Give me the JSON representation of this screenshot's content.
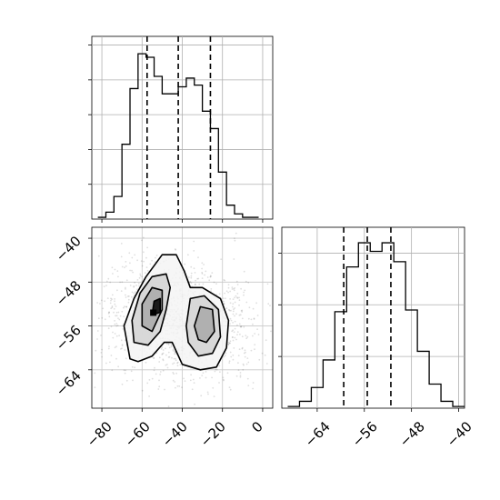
{
  "chart_data": [
    {
      "type": "histogram",
      "panel": "top-left marginal",
      "bin_edges": [
        -82,
        -78,
        -74,
        -70,
        -66,
        -62,
        -58,
        -54,
        -50,
        -46,
        -42,
        -38,
        -34,
        -30,
        -26,
        -22,
        -18,
        -14,
        -10,
        -6,
        -2
      ],
      "counts": [
        0.01,
        0.04,
        0.13,
        0.43,
        0.75,
        0.95,
        0.93,
        0.82,
        0.72,
        0.72,
        0.76,
        0.81,
        0.77,
        0.62,
        0.52,
        0.27,
        0.08,
        0.03,
        0.01,
        0.01
      ],
      "quantile_lines": [
        -57.5,
        -42.0,
        -26.0
      ],
      "xlim": [
        -85,
        5
      ],
      "ylim": [
        0,
        1.05
      ],
      "grid": true
    },
    {
      "type": "2d-density",
      "panel": "bottom-left joint",
      "xlim": [
        -85,
        5
      ],
      "ylim": [
        -71,
        -38
      ],
      "x_ticks": [
        -80,
        -60,
        -40,
        -20,
        0
      ],
      "y_ticks": [
        -40,
        -48,
        -56,
        -64
      ],
      "modes": [
        {
          "x": -54,
          "y": -54,
          "weight": 1.0
        },
        {
          "x": -29,
          "y": -56,
          "weight": 0.78
        }
      ],
      "contours": [
        {
          "level": "outer",
          "points": [
            [
              -66,
              -62
            ],
            [
              -69,
              -56
            ],
            [
              -64,
              -51
            ],
            [
              -58,
              -47
            ],
            [
              -50,
              -43
            ],
            [
              -43,
              -43
            ],
            [
              -39,
              -46
            ],
            [
              -36,
              -49
            ],
            [
              -30,
              -49
            ],
            [
              -21,
              -51
            ],
            [
              -17,
              -55
            ],
            [
              -18,
              -60
            ],
            [
              -23,
              -63.5
            ],
            [
              -31,
              -64
            ],
            [
              -40,
              -63
            ],
            [
              -45,
              -59
            ],
            [
              -49,
              -59
            ],
            [
              -55,
              -61.5
            ],
            [
              -62,
              -62.5
            ]
          ]
        },
        {
          "level": "second",
          "points": [
            [
              -64,
              -59
            ],
            [
              -65,
              -55
            ],
            [
              -61,
              -50
            ],
            [
              -55,
              -47
            ],
            [
              -48,
              -46.5
            ],
            [
              -46,
              -49
            ],
            [
              -48,
              -53
            ],
            [
              -51,
              -57
            ],
            [
              -57,
              -59.5
            ]
          ]
        },
        {
          "level": "second-b",
          "points": [
            [
              -38,
              -56
            ],
            [
              -36,
              -51
            ],
            [
              -29,
              -50.5
            ],
            [
              -22,
              -53
            ],
            [
              -21,
              -58
            ],
            [
              -25,
              -61
            ],
            [
              -32,
              -61.5
            ],
            [
              -37,
              -59
            ]
          ]
        },
        {
          "level": "third",
          "points": [
            [
              -60,
              -56
            ],
            [
              -60,
              -52
            ],
            [
              -55,
              -49
            ],
            [
              -50,
              -49.5
            ],
            [
              -50,
              -53
            ],
            [
              -55,
              -57
            ]
          ]
        },
        {
          "level": "third-b",
          "points": [
            [
              -34,
              -56
            ],
            [
              -31,
              -52.5
            ],
            [
              -25,
              -53
            ],
            [
              -24,
              -57
            ],
            [
              -28,
              -59
            ],
            [
              -32,
              -58.5
            ]
          ]
        },
        {
          "level": "inner",
          "points": [
            [
              -55,
              -54
            ],
            [
              -54,
              -51.5
            ],
            [
              -51,
              -51
            ],
            [
              -51,
              -53.5
            ]
          ]
        }
      ],
      "grid": true
    },
    {
      "type": "histogram",
      "panel": "bottom-right marginal",
      "bin_edges": [
        -69,
        -67,
        -65,
        -63,
        -61,
        -59,
        -57,
        -55,
        -53,
        -51,
        -49,
        -47,
        -45,
        -43,
        -41,
        -39
      ],
      "counts": [
        0.01,
        0.04,
        0.12,
        0.28,
        0.56,
        0.82,
        0.96,
        0.91,
        0.96,
        0.85,
        0.57,
        0.33,
        0.14,
        0.04,
        0.01
      ],
      "quantile_lines": [
        -59.5,
        -55.5,
        -51.5
      ],
      "xlim": [
        -70,
        -39
      ],
      "x_ticks": [
        -64,
        -56,
        -48,
        -40
      ],
      "ylim": [
        0,
        1.05
      ],
      "grid": true
    }
  ],
  "ticks": {
    "joint_x": [
      "−80",
      "−60",
      "−40",
      "−20",
      "0"
    ],
    "joint_y": [
      "−40",
      "−48",
      "−56",
      "−64"
    ],
    "marg_x": [
      "−64",
      "−56",
      "−48",
      "−40"
    ]
  }
}
